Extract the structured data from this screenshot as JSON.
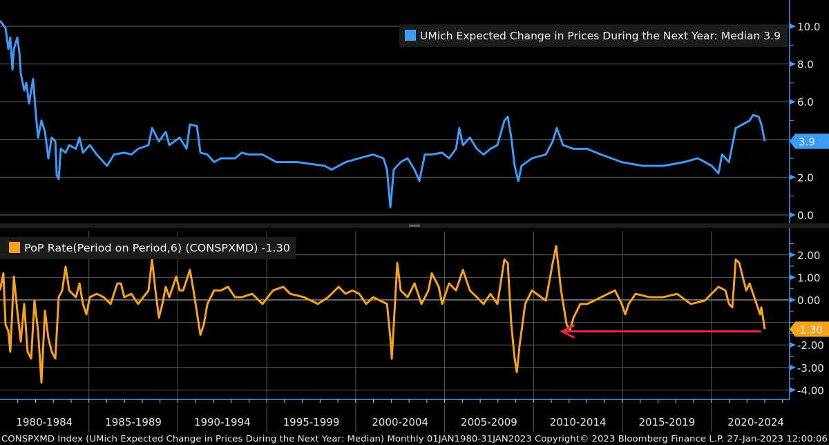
{
  "chart_data": [
    {
      "type": "line",
      "title": "UMich Expected Change in Prices During the Next Year: Median 3.9",
      "legend": "UMich Expected Change in Prices During the Next Year: Median 3.9",
      "legend_placement": "top-right",
      "color": "#3d9bf5",
      "ylim": [
        0,
        10.8
      ],
      "yticks": [
        "10.0",
        "8.0",
        "6.0",
        "2.0",
        "0.0"
      ],
      "ytick_values": [
        10,
        8,
        6,
        2,
        0
      ],
      "last_value_label": "3.9",
      "last_value": 3.9,
      "grid_values": [
        10,
        8,
        6,
        4,
        2,
        0
      ],
      "series": [
        {
          "name": "CONSPXMD",
          "points": [
            [
              1980.0,
              10.3
            ],
            [
              1980.31,
              9.9
            ],
            [
              1980.47,
              8.8
            ],
            [
              1980.58,
              9.4
            ],
            [
              1980.7,
              7.7
            ],
            [
              1980.78,
              8.8
            ],
            [
              1980.97,
              9.4
            ],
            [
              1981.09,
              8.6
            ],
            [
              1981.17,
              7.5
            ],
            [
              1981.36,
              6.6
            ],
            [
              1981.48,
              7.0
            ],
            [
              1981.63,
              5.9
            ],
            [
              1981.86,
              7.2
            ],
            [
              1982.02,
              5.3
            ],
            [
              1982.14,
              4.1
            ],
            [
              1982.33,
              5.0
            ],
            [
              1982.53,
              4.4
            ],
            [
              1982.72,
              3.0
            ],
            [
              1982.91,
              4.1
            ],
            [
              1983.11,
              3.9
            ],
            [
              1983.19,
              2.1
            ],
            [
              1983.3,
              1.9
            ],
            [
              1983.42,
              3.5
            ],
            [
              1983.69,
              3.3
            ],
            [
              1983.89,
              3.7
            ],
            [
              1984.27,
              3.5
            ],
            [
              1984.47,
              4.1
            ],
            [
              1984.66,
              3.3
            ],
            [
              1985.05,
              3.7
            ],
            [
              1985.44,
              3.2
            ],
            [
              1986.02,
              2.6
            ],
            [
              1986.41,
              3.2
            ],
            [
              1986.99,
              3.3
            ],
            [
              1987.38,
              3.2
            ],
            [
              1987.77,
              3.5
            ],
            [
              1988.35,
              3.7
            ],
            [
              1988.55,
              4.6
            ],
            [
              1988.94,
              3.9
            ],
            [
              1989.32,
              4.4
            ],
            [
              1989.52,
              3.7
            ],
            [
              1990.1,
              4.1
            ],
            [
              1990.49,
              3.5
            ],
            [
              1990.68,
              4.8
            ],
            [
              1991.07,
              4.7
            ],
            [
              1991.27,
              3.3
            ],
            [
              1991.66,
              3.2
            ],
            [
              1992.04,
              2.8
            ],
            [
              1992.43,
              3.0
            ],
            [
              1993.21,
              3.0
            ],
            [
              1993.6,
              3.3
            ],
            [
              1993.99,
              3.2
            ],
            [
              1994.76,
              3.2
            ],
            [
              1995.54,
              2.8
            ],
            [
              1996.71,
              2.8
            ],
            [
              1998.26,
              2.6
            ],
            [
              1998.65,
              2.4
            ],
            [
              1999.43,
              2.8
            ],
            [
              2000.2,
              3.0
            ],
            [
              2000.98,
              3.2
            ],
            [
              2001.56,
              3.0
            ],
            [
              2001.76,
              2.4
            ],
            [
              2001.95,
              0.4
            ],
            [
              2002.14,
              2.4
            ],
            [
              2002.53,
              2.8
            ],
            [
              2002.92,
              3.0
            ],
            [
              2003.31,
              2.4
            ],
            [
              2003.58,
              1.8
            ],
            [
              2003.89,
              3.2
            ],
            [
              2004.28,
              3.2
            ],
            [
              2004.86,
              3.3
            ],
            [
              2005.25,
              3.0
            ],
            [
              2005.64,
              3.5
            ],
            [
              2005.83,
              4.6
            ],
            [
              2006.03,
              3.7
            ],
            [
              2006.42,
              4.1
            ],
            [
              2006.81,
              3.5
            ],
            [
              2007.19,
              3.2
            ],
            [
              2007.58,
              3.5
            ],
            [
              2007.97,
              3.7
            ],
            [
              2008.36,
              5.0
            ],
            [
              2008.55,
              5.2
            ],
            [
              2008.75,
              4.1
            ],
            [
              2008.94,
              2.6
            ],
            [
              2009.14,
              1.8
            ],
            [
              2009.33,
              2.6
            ],
            [
              2009.91,
              3.0
            ],
            [
              2010.69,
              3.2
            ],
            [
              2011.08,
              3.9
            ],
            [
              2011.31,
              4.6
            ],
            [
              2011.66,
              3.7
            ],
            [
              2012.25,
              3.5
            ],
            [
              2013.02,
              3.5
            ],
            [
              2013.8,
              3.2
            ],
            [
              2014.96,
              2.8
            ],
            [
              2016.13,
              2.6
            ],
            [
              2017.3,
              2.6
            ],
            [
              2018.46,
              2.8
            ],
            [
              2019.24,
              3.0
            ],
            [
              2020.02,
              2.6
            ],
            [
              2020.4,
              2.2
            ],
            [
              2020.6,
              3.2
            ],
            [
              2020.99,
              2.8
            ],
            [
              2021.37,
              4.6
            ],
            [
              2021.76,
              4.8
            ],
            [
              2022.15,
              5.0
            ],
            [
              2022.35,
              5.3
            ],
            [
              2022.66,
              5.2
            ],
            [
              2022.81,
              4.8
            ],
            [
              2023.0,
              3.9
            ]
          ]
        }
      ]
    },
    {
      "type": "line",
      "title": "PoP Rate(Period on Period,6) (CONSPXMD) -1.30",
      "legend": "PoP Rate(Period on Period,6) (CONSPXMD) -1.30",
      "legend_placement": "top-left",
      "color": "#f7a21b",
      "ylim": [
        -4.4,
        2.9
      ],
      "yticks": [
        "2.00",
        "1.00",
        "0.00",
        "-2.00",
        "-3.00",
        "-4.00"
      ],
      "ytick_values": [
        2,
        1,
        0,
        -2,
        -3,
        -4
      ],
      "last_value_label": "-1.30",
      "last_value": -1.3,
      "grid_values": [
        2,
        1,
        0,
        -1,
        -2,
        -3,
        -4
      ],
      "annotation": {
        "type": "arrow",
        "color": "#ee2545",
        "from": [
          2022.8,
          -1.4
        ],
        "to": [
          2011.6,
          -1.4
        ]
      },
      "series": [
        {
          "name": "PoP Rate 6",
          "points": [
            [
              1980.0,
              0.42
            ],
            [
              1980.19,
              1.18
            ],
            [
              1980.31,
              -1.09
            ],
            [
              1980.47,
              -1.39
            ],
            [
              1980.58,
              -2.3
            ],
            [
              1980.78,
              1.03
            ],
            [
              1980.97,
              -0.48
            ],
            [
              1981.17,
              -1.85
            ],
            [
              1981.36,
              -0.18
            ],
            [
              1981.55,
              -2.3
            ],
            [
              1981.75,
              -2.61
            ],
            [
              1981.94,
              -0.03
            ],
            [
              1982.14,
              -1.39
            ],
            [
              1982.33,
              -3.67
            ],
            [
              1982.53,
              -0.48
            ],
            [
              1982.72,
              -1.7
            ],
            [
              1982.91,
              -2.3
            ],
            [
              1983.11,
              -2.61
            ],
            [
              1983.3,
              0.12
            ],
            [
              1983.5,
              0.42
            ],
            [
              1983.69,
              1.48
            ],
            [
              1983.89,
              0.42
            ],
            [
              1984.27,
              0.12
            ],
            [
              1984.47,
              0.73
            ],
            [
              1984.66,
              -0.18
            ],
            [
              1984.86,
              -0.64
            ],
            [
              1985.05,
              0.12
            ],
            [
              1985.44,
              0.27
            ],
            [
              1985.83,
              0.12
            ],
            [
              1986.22,
              -0.18
            ],
            [
              1986.6,
              0.73
            ],
            [
              1986.8,
              0.73
            ],
            [
              1986.99,
              0.12
            ],
            [
              1987.38,
              0.27
            ],
            [
              1987.77,
              -0.18
            ],
            [
              1988.35,
              0.42
            ],
            [
              1988.55,
              1.79
            ],
            [
              1988.74,
              0.42
            ],
            [
              1988.94,
              -0.79
            ],
            [
              1989.13,
              -0.18
            ],
            [
              1989.32,
              0.58
            ],
            [
              1989.52,
              0.12
            ],
            [
              1989.91,
              1.03
            ],
            [
              1990.1,
              0.42
            ],
            [
              1990.3,
              0.42
            ],
            [
              1990.68,
              1.33
            ],
            [
              1990.88,
              0.42
            ],
            [
              1991.27,
              -1.55
            ],
            [
              1991.46,
              -1.09
            ],
            [
              1991.66,
              -0.18
            ],
            [
              1992.04,
              0.42
            ],
            [
              1992.43,
              0.42
            ],
            [
              1992.82,
              0.58
            ],
            [
              1993.21,
              0.12
            ],
            [
              1993.6,
              0.12
            ],
            [
              1994.18,
              0.27
            ],
            [
              1994.76,
              -0.18
            ],
            [
              1995.35,
              0.42
            ],
            [
              1995.93,
              0.58
            ],
            [
              1996.32,
              0.27
            ],
            [
              1997.09,
              0.12
            ],
            [
              1997.87,
              -0.18
            ],
            [
              1998.45,
              0.12
            ],
            [
              1999.04,
              0.58
            ],
            [
              1999.43,
              0.27
            ],
            [
              1999.81,
              0.42
            ],
            [
              2000.2,
              0.27
            ],
            [
              2000.59,
              -0.18
            ],
            [
              2000.98,
              0.12
            ],
            [
              2001.37,
              -0.03
            ],
            [
              2001.76,
              -0.18
            ],
            [
              2001.95,
              -1.7
            ],
            [
              2002.03,
              -2.61
            ],
            [
              2002.14,
              -1.09
            ],
            [
              2002.34,
              1.64
            ],
            [
              2002.53,
              0.42
            ],
            [
              2002.92,
              0.12
            ],
            [
              2003.31,
              0.73
            ],
            [
              2003.7,
              -0.18
            ],
            [
              2004.09,
              0.42
            ],
            [
              2004.28,
              1.18
            ],
            [
              2004.67,
              0.58
            ],
            [
              2004.86,
              -0.18
            ],
            [
              2005.25,
              0.73
            ],
            [
              2005.64,
              0.42
            ],
            [
              2006.03,
              1.33
            ],
            [
              2006.42,
              0.42
            ],
            [
              2006.81,
              0.12
            ],
            [
              2007.19,
              -0.18
            ],
            [
              2007.58,
              0.27
            ],
            [
              2007.97,
              -0.18
            ],
            [
              2008.36,
              1.79
            ],
            [
              2008.55,
              1.64
            ],
            [
              2008.75,
              -1.09
            ],
            [
              2008.94,
              -2.61
            ],
            [
              2009.06,
              -3.21
            ],
            [
              2009.22,
              -2.0
            ],
            [
              2009.53,
              -0.18
            ],
            [
              2009.91,
              0.42
            ],
            [
              2010.69,
              -0.03
            ],
            [
              2011.08,
              1.64
            ],
            [
              2011.27,
              2.39
            ],
            [
              2011.55,
              0.42
            ],
            [
              2011.86,
              -1.09
            ],
            [
              2012.05,
              -1.33
            ],
            [
              2012.25,
              -0.79
            ],
            [
              2012.63,
              -0.18
            ],
            [
              2013.02,
              -0.18
            ],
            [
              2013.41,
              -0.03
            ],
            [
              2014.19,
              0.27
            ],
            [
              2014.58,
              0.42
            ],
            [
              2014.96,
              -0.18
            ],
            [
              2015.16,
              -0.64
            ],
            [
              2015.35,
              -0.18
            ],
            [
              2015.74,
              0.27
            ],
            [
              2016.52,
              0.12
            ],
            [
              2017.3,
              0.12
            ],
            [
              2018.07,
              0.27
            ],
            [
              2018.85,
              -0.18
            ],
            [
              2019.63,
              -0.03
            ],
            [
              2020.4,
              0.58
            ],
            [
              2020.79,
              0.42
            ],
            [
              2020.99,
              -0.18
            ],
            [
              2021.18,
              -0.33
            ],
            [
              2021.37,
              1.79
            ],
            [
              2021.57,
              1.64
            ],
            [
              2021.76,
              1.03
            ],
            [
              2021.96,
              0.42
            ],
            [
              2022.15,
              0.73
            ],
            [
              2022.35,
              0.27
            ],
            [
              2022.54,
              -0.18
            ],
            [
              2022.74,
              -0.64
            ],
            [
              2022.81,
              -0.33
            ],
            [
              2023.0,
              -1.3
            ]
          ]
        }
      ]
    }
  ],
  "x_axis": {
    "range": [
      1980,
      2024.4
    ],
    "labels": [
      "1980-1984",
      "1985-1989",
      "1990-1994",
      "1995-1999",
      "2000-2004",
      "2005-2009",
      "2010-2014",
      "2015-2019",
      "2020-2024"
    ]
  },
  "footer": "CONSPXMD Index (UMich Expected Change in Prices During the Next Year: Median)  Monthly 01JAN1980-31JAN2023 Copyright© 2023 Bloomberg Finance L.P.  27-Jan-2023 12:00:06"
}
